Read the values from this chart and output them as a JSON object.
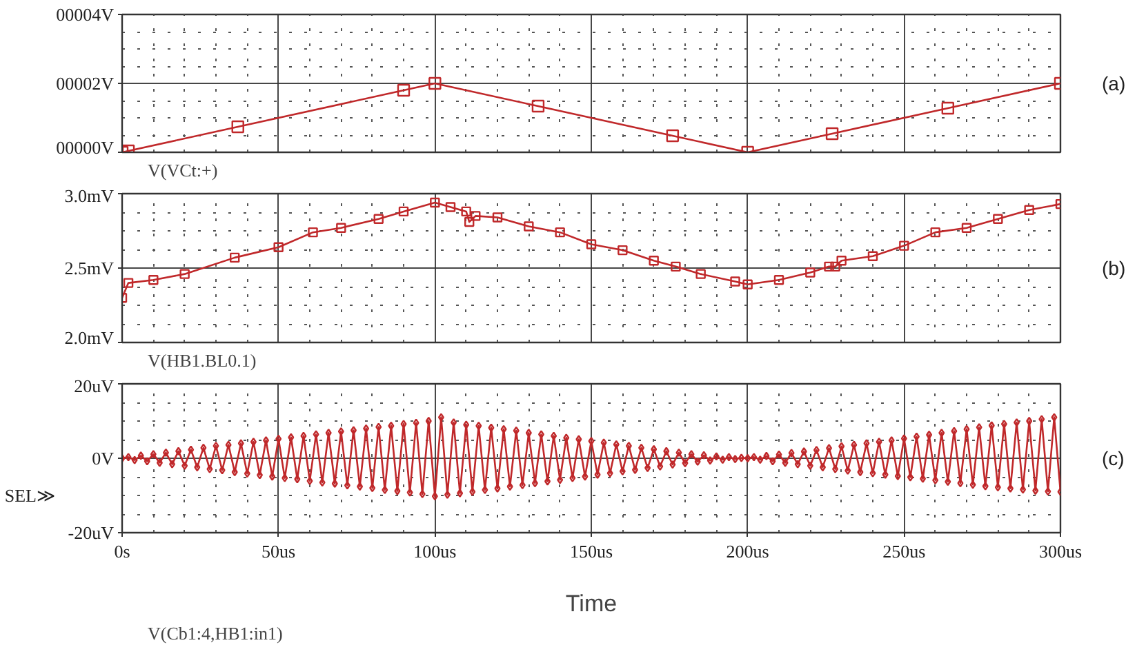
{
  "chart_data": [
    {
      "type": "line",
      "x": [
        0,
        2,
        37,
        90,
        100,
        133,
        176,
        200,
        227,
        264,
        300
      ],
      "series": [
        {
          "name": "V(VCt:+)",
          "color": "#c0282a",
          "values": [
            0,
            0.04,
            0.74,
            1.8,
            2,
            1.34,
            0.48,
            0,
            0.54,
            1.28,
            2
          ]
        }
      ],
      "xlim": [
        0,
        300
      ],
      "xticks": [
        0,
        50,
        100,
        150,
        200,
        250,
        300
      ],
      "ylim": [
        0,
        4
      ],
      "yticks": [
        {
          "value": 0,
          "label": "00000V"
        },
        {
          "value": 2,
          "label": "00002V"
        },
        {
          "value": 4,
          "label": "00004V"
        }
      ],
      "grid": true,
      "legend": "bottom left",
      "marker": "square",
      "tick_labels": "y",
      "annotations": [
        "(a)"
      ]
    },
    {
      "type": "line",
      "x": [
        0,
        2,
        10,
        20,
        36,
        50,
        61,
        70,
        82,
        90,
        100,
        105,
        110,
        111,
        113,
        120,
        130,
        140,
        150,
        160,
        170,
        177,
        185,
        196,
        200,
        210,
        220,
        226,
        228,
        230,
        240,
        250,
        260,
        270,
        280,
        290,
        300
      ],
      "series": [
        {
          "name": "V(HB1.BL0.1)",
          "color": "#c0282a",
          "values": [
            2.3,
            2.4,
            2.42,
            2.46,
            2.57,
            2.64,
            2.74,
            2.77,
            2.83,
            2.88,
            2.94,
            2.91,
            2.88,
            2.81,
            2.85,
            2.84,
            2.78,
            2.74,
            2.66,
            2.62,
            2.55,
            2.51,
            2.46,
            2.41,
            2.39,
            2.42,
            2.47,
            2.51,
            2.51,
            2.55,
            2.58,
            2.65,
            2.74,
            2.77,
            2.83,
            2.89,
            2.93
          ]
        }
      ],
      "xlim": [
        0,
        300
      ],
      "xticks": [
        0,
        50,
        100,
        150,
        200,
        250,
        300
      ],
      "ylim": [
        2.0,
        3.0
      ],
      "yticks": [
        {
          "value": 2.0,
          "label": "2.0mV"
        },
        {
          "value": 2.5,
          "label": "2.5mV"
        },
        {
          "value": 3.0,
          "label": "3.0mV"
        }
      ],
      "grid": true,
      "legend": "bottom left",
      "marker": "square",
      "tick_labels": "y",
      "annotations": [
        "(b)"
      ]
    },
    {
      "type": "line",
      "xlabel": "Time",
      "x": [
        0,
        2,
        4,
        6,
        8,
        10,
        12,
        14,
        16,
        18,
        20,
        22,
        24,
        26,
        28,
        30,
        32,
        34,
        36,
        38,
        40,
        42,
        44,
        46,
        48,
        50,
        52,
        54,
        56,
        58,
        60,
        62,
        64,
        66,
        68,
        70,
        72,
        74,
        76,
        78,
        80,
        82,
        84,
        86,
        88,
        90,
        92,
        94,
        96,
        98,
        100,
        102,
        104,
        106,
        108,
        110,
        112,
        114,
        116,
        118,
        120,
        122,
        124,
        126,
        128,
        130,
        132,
        134,
        136,
        138,
        140,
        142,
        144,
        146,
        148,
        150,
        152,
        154,
        156,
        158,
        160,
        162,
        164,
        166,
        168,
        170,
        172,
        174,
        176,
        178,
        180,
        182,
        184,
        186,
        188,
        190,
        192,
        194,
        196,
        198,
        200,
        202,
        204,
        206,
        208,
        210,
        212,
        214,
        216,
        218,
        220,
        222,
        224,
        226,
        228,
        230,
        232,
        234,
        236,
        238,
        240,
        242,
        244,
        246,
        248,
        250,
        252,
        254,
        256,
        258,
        260,
        262,
        264,
        266,
        268,
        270,
        272,
        274,
        276,
        278,
        280,
        282,
        284,
        286,
        288,
        290,
        292,
        294,
        296,
        298,
        300
      ],
      "series": [
        {
          "name": "V(Cb1:4,HB1:in1)",
          "color": "#c0282a",
          "values": [
            0,
            0.3,
            -0.5,
            0.7,
            -0.8,
            1.1,
            -1.2,
            1.5,
            -1.6,
            1.9,
            -2.0,
            2.3,
            -2.4,
            2.8,
            -2.9,
            3.3,
            -3.2,
            3.6,
            -3.7,
            4.0,
            -4.1,
            4.4,
            -4.5,
            4.8,
            -4.9,
            5.2,
            -5.3,
            5.6,
            -5.6,
            6.0,
            -6.1,
            6.4,
            -6.5,
            6.8,
            -6.8,
            7.2,
            -7.3,
            7.5,
            -7.6,
            8.0,
            -8.0,
            8.4,
            -8.5,
            8.7,
            -8.8,
            9.2,
            -9.2,
            9.5,
            -9.6,
            10.0,
            -10.2,
            11.0,
            -9.8,
            9.6,
            -9.4,
            9.0,
            -9.0,
            8.7,
            -8.5,
            8.2,
            -8.1,
            7.8,
            -7.6,
            7.4,
            -7.2,
            6.8,
            -6.7,
            6.4,
            -6.2,
            6.0,
            -5.8,
            5.5,
            -5.3,
            5.1,
            -4.9,
            4.6,
            -4.4,
            4.2,
            -4.0,
            3.7,
            -3.5,
            3.3,
            -3.1,
            2.8,
            -2.6,
            2.4,
            -2.2,
            1.9,
            -1.7,
            1.5,
            -1.3,
            1.1,
            -0.9,
            0.8,
            -0.6,
            0.5,
            -0.4,
            0.3,
            -0.2,
            0.1,
            0,
            0.3,
            -0.4,
            0.6,
            -0.8,
            1.0,
            -1.2,
            1.4,
            -1.6,
            1.8,
            -2.0,
            2.2,
            -2.4,
            2.7,
            -2.9,
            3.2,
            -3.3,
            3.6,
            -3.7,
            4.0,
            -4.0,
            4.4,
            -4.4,
            4.8,
            -4.8,
            5.3,
            -5.1,
            5.8,
            -5.5,
            6.3,
            -5.9,
            6.8,
            -6.3,
            7.3,
            -6.7,
            7.8,
            -7.1,
            8.3,
            -7.5,
            8.8,
            -7.8,
            9.2,
            -8.1,
            9.6,
            -8.4,
            10.0,
            -8.7,
            10.5,
            -8.9,
            11.0,
            -9.0
          ]
        }
      ],
      "xlim": [
        0,
        300
      ],
      "xticks": [
        {
          "value": 0,
          "label": "0s"
        },
        {
          "value": 50,
          "label": "50us"
        },
        {
          "value": 100,
          "label": "100us"
        },
        {
          "value": 150,
          "label": "150us"
        },
        {
          "value": 200,
          "label": "200us"
        },
        {
          "value": 250,
          "label": "250us"
        },
        {
          "value": 300,
          "label": "300us"
        }
      ],
      "ylim": [
        -20,
        20
      ],
      "yticks": [
        {
          "value": -20,
          "label": "-20uV"
        },
        {
          "value": 0,
          "label": "0V"
        },
        {
          "value": 20,
          "label": "20uV"
        }
      ],
      "grid": true,
      "legend": "bottom left",
      "marker": "diamond",
      "annotations": [
        "(c)",
        "SEL≫"
      ]
    }
  ]
}
